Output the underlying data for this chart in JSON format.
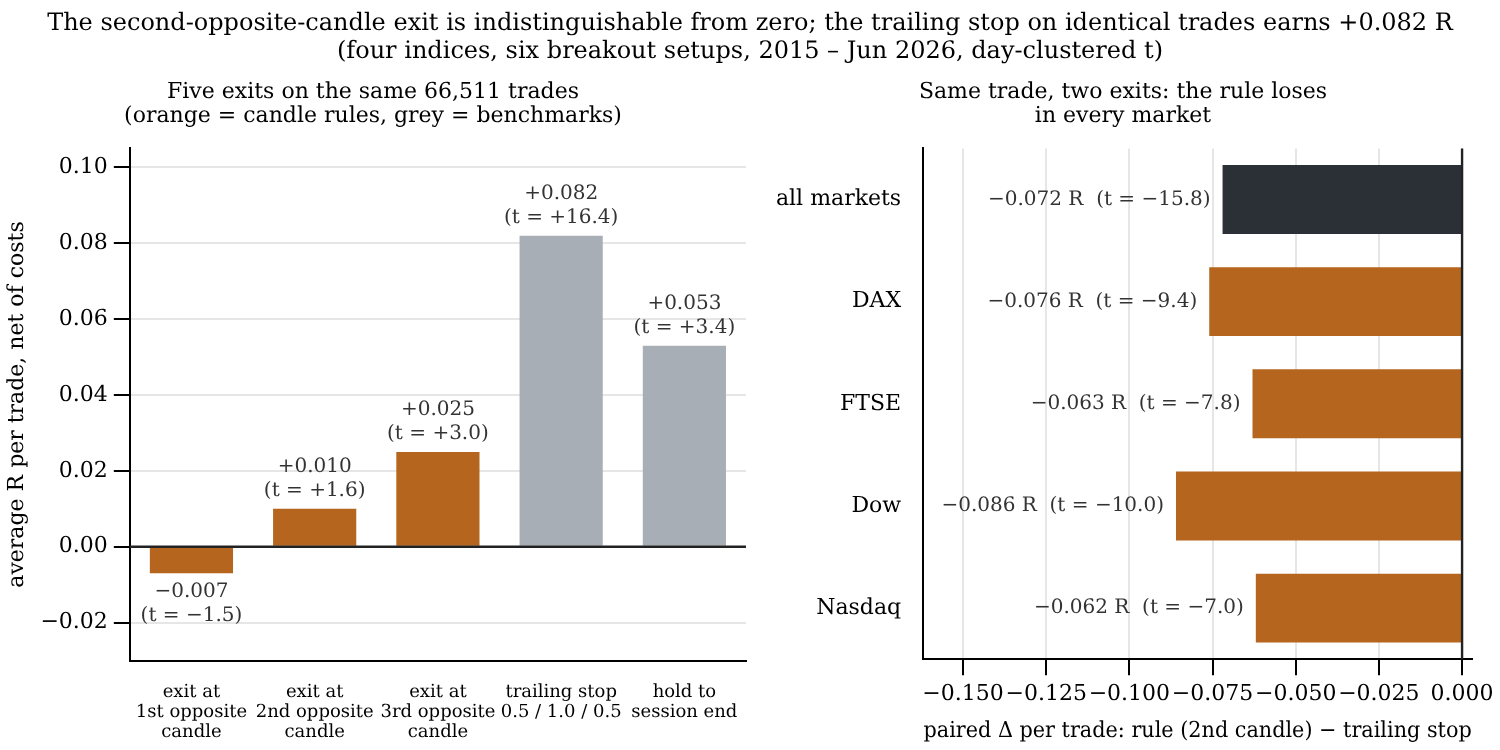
{
  "chart_data": [
    {
      "type": "bar",
      "title": "Five exits on the same 66,511 trades\n(orange = candle rules, grey = benchmarks)",
      "annotations": [
        "The second-opposite-candle exit is indistinguishable from zero; the trailing stop on identical trades earns +0.082 R\n(four indices, six breakout setups, 2015 – Jun 2026, day-clustered t)"
      ],
      "categories": [
        "exit at\n1st opposite\ncandle",
        "exit at\n2nd opposite\ncandle",
        "exit at\n3rd opposite\ncandle",
        "trailing stop\n0.5 / 1.0 / 0.5",
        "hold to\nsession end"
      ],
      "values": [
        -0.007,
        0.01,
        0.025,
        0.082,
        0.053
      ],
      "colors": [
        "#b5651d",
        "#b5651d",
        "#b5651d",
        "#a8aeb5",
        "#a8aeb5"
      ],
      "value_labels": [
        "−0.007\n(t = −1.5)",
        "+0.010\n(t = +1.6)",
        "+0.025\n(t = +3.0)",
        "+0.082\n(t = +16.4)",
        "+0.053\n(t = +3.4)"
      ],
      "ylabel": "average R per trade, net of costs",
      "ylim": [
        -0.03,
        0.105
      ],
      "yticks": [
        {
          "value": -0.02,
          "label": "−0.02"
        },
        {
          "value": 0,
          "label": "0.00"
        },
        {
          "value": 0.02,
          "label": "0.02"
        },
        {
          "value": 0.04,
          "label": "0.04"
        },
        {
          "value": 0.06,
          "label": "0.06"
        },
        {
          "value": 0.08,
          "label": "0.08"
        },
        {
          "value": 0.1,
          "label": "0.10"
        }
      ],
      "grid": "y",
      "ref_lines": [
        {
          "axis": "y",
          "value": 0,
          "color": "#222222"
        }
      ]
    },
    {
      "type": "bar",
      "orientation": "horizontal",
      "title": "Same trade, two exits: the rule loses\nin every market",
      "categories": [
        "all markets",
        "DAX",
        "FTSE",
        "Dow",
        "Nasdaq"
      ],
      "values": [
        -0.072,
        -0.076,
        -0.063,
        -0.086,
        -0.062
      ],
      "colors": [
        "#2b2f36",
        "#b5651d",
        "#b5651d",
        "#b5651d",
        "#b5651d"
      ],
      "value_labels": [
        "−0.072 R  (t = −15.8)",
        "−0.076 R  (t = −9.4)",
        "−0.063 R  (t = −7.8)",
        "−0.086 R  (t = −10.0)",
        "−0.062 R  (t = −7.0)"
      ],
      "xlabel": "paired Δ per trade: rule (2nd candle) − trailing stop",
      "xlim": [
        -0.162,
        0.003
      ],
      "xticks": [
        {
          "value": -0.15,
          "label": "−0.150"
        },
        {
          "value": -0.125,
          "label": "−0.125"
        },
        {
          "value": -0.1,
          "label": "−0.100"
        },
        {
          "value": -0.075,
          "label": "−0.075"
        },
        {
          "value": -0.05,
          "label": "−0.050"
        },
        {
          "value": -0.025,
          "label": "−0.025"
        },
        {
          "value": 0,
          "label": "0.000"
        }
      ],
      "grid": "x",
      "ref_lines": [
        {
          "axis": "x",
          "value": 0,
          "color": "#222222"
        }
      ]
    }
  ]
}
